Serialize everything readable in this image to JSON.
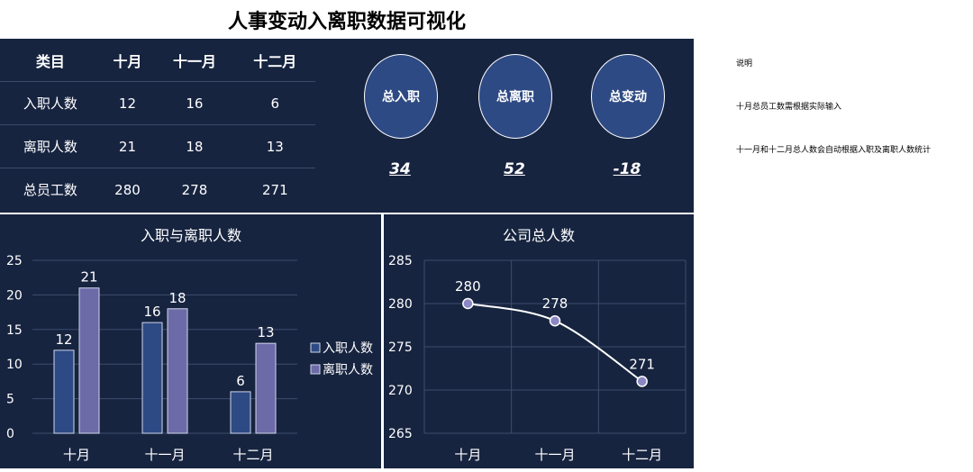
{
  "title": "人事变动入离职数据可视化",
  "table": {
    "headers": [
      "类目",
      "十月",
      "十一月",
      "十二月"
    ],
    "rows": [
      [
        "入职人数",
        "12",
        "16",
        "6"
      ],
      [
        "离职人数",
        "21",
        "18",
        "13"
      ],
      [
        "总员工数",
        "280",
        "278",
        "271"
      ]
    ]
  },
  "summary": [
    {
      "label": "总入职",
      "value": "34"
    },
    {
      "label": "总离职",
      "value": "52"
    },
    {
      "label": "总变动",
      "value": "-18"
    }
  ],
  "notes": [
    "说明",
    "十月总员工数需根据实际输入",
    "十一月和十二月总人数会自动根据入职及离职人数统计"
  ],
  "colors": {
    "background": "#172440",
    "hire": "#2e4a84",
    "leave": "#6d6aa8",
    "line": "#ffffff",
    "point": "#8a87c4"
  },
  "chart_data": [
    {
      "type": "bar",
      "title": "入职与离职人数",
      "categories": [
        "十月",
        "十一月",
        "十二月"
      ],
      "series": [
        {
          "name": "入职人数",
          "values": [
            12,
            16,
            6
          ]
        },
        {
          "name": "离职人数",
          "values": [
            21,
            18,
            13
          ]
        }
      ],
      "ylim": [
        0,
        25
      ],
      "yticks": [
        0,
        5,
        10,
        15,
        20,
        25
      ],
      "grid": true,
      "legend": "right"
    },
    {
      "type": "line",
      "title": "公司总人数",
      "categories": [
        "十月",
        "十一月",
        "十二月"
      ],
      "series": [
        {
          "values": [
            280,
            278,
            271
          ]
        }
      ],
      "ylim": [
        265,
        285
      ],
      "yticks": [
        265,
        270,
        275,
        280,
        285
      ],
      "grid": true
    }
  ]
}
